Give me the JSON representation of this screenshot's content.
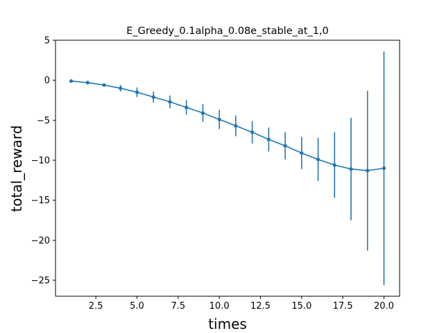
{
  "chart_data": {
    "type": "line",
    "title": "E_Greedy_0.1alpha_0.08e_stable_at_1,0",
    "xlabel": "times",
    "ylabel": "total_reward",
    "xlim": [
      0.05,
      20.95
    ],
    "ylim": [
      -27.0,
      5.0
    ],
    "xticks": [
      2.5,
      5.0,
      7.5,
      10.0,
      12.5,
      15.0,
      17.5,
      20.0
    ],
    "xtick_labels": [
      "2.5",
      "5.0",
      "7.5",
      "10.0",
      "12.5",
      "15.0",
      "17.5",
      "20.0"
    ],
    "yticks": [
      5,
      0,
      -5,
      -10,
      -15,
      -20,
      -25
    ],
    "ytick_labels": [
      "5",
      "0",
      "−5",
      "−10",
      "−15",
      "−20",
      "−25"
    ],
    "grid": false,
    "color": "#1f77b4",
    "series": [
      {
        "x": [
          1,
          2,
          3,
          4,
          5,
          6,
          7,
          8,
          9,
          10,
          11,
          12,
          13,
          14,
          15,
          16,
          17,
          18,
          19,
          20
        ],
        "y": [
          -0.1,
          -0.3,
          -0.6,
          -1.0,
          -1.5,
          -2.1,
          -2.7,
          -3.4,
          -4.1,
          -4.9,
          -5.7,
          -6.5,
          -7.4,
          -8.2,
          -9.1,
          -9.9,
          -10.6,
          -11.1,
          -11.3,
          -11.0
        ],
        "error": [
          0.05,
          0.1,
          0.2,
          0.4,
          0.6,
          0.7,
          0.8,
          0.9,
          1.1,
          1.2,
          1.3,
          1.4,
          1.5,
          1.7,
          2.0,
          2.7,
          4.1,
          6.4,
          10.0,
          14.6
        ]
      }
    ]
  }
}
